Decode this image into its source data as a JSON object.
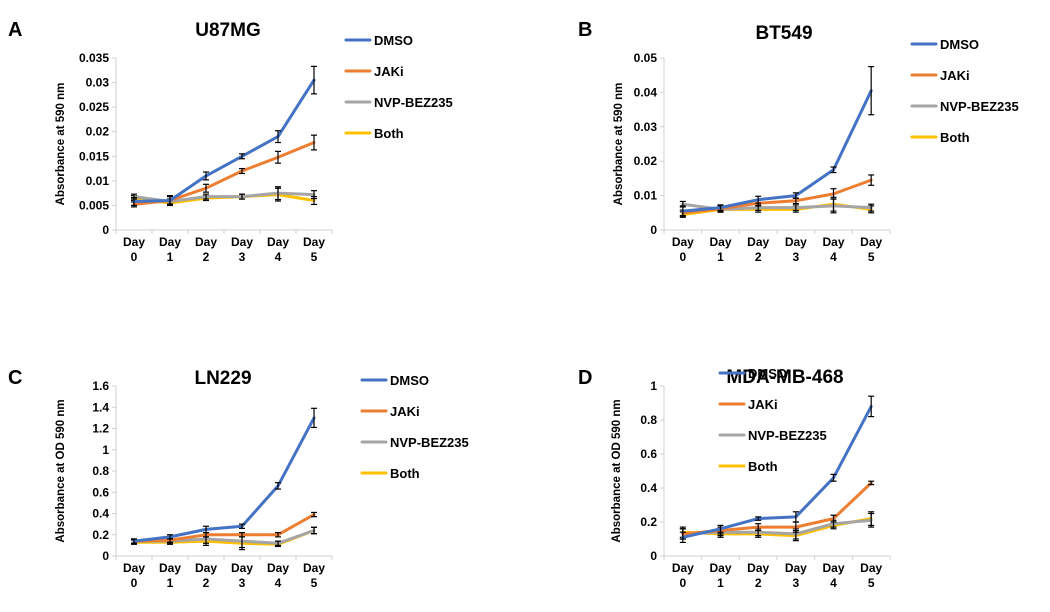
{
  "colors": {
    "DMSO": "#4472C4",
    "JAKi": "#ED7D31",
    "NVP-BEZ235": "#A5A5A5",
    "Both": "#FFC000"
  },
  "chart_data": [
    {
      "panel": "A",
      "type": "line",
      "title": "U87MG",
      "ylabel": "Absorbance at 590 nm",
      "ylim": [
        0,
        0.035
      ],
      "yticks": [
        0,
        0.005,
        0.01,
        0.015,
        0.02,
        0.025,
        0.03,
        0.035
      ],
      "ytick_labels": [
        "0",
        "0.005",
        "0.01",
        "0.015",
        "0.02",
        "0.025",
        "0.03",
        "0.035"
      ],
      "categories": [
        [
          "Day",
          "0"
        ],
        [
          "Day",
          "1"
        ],
        [
          "Day",
          "2"
        ],
        [
          "Day",
          "3"
        ],
        [
          "Day",
          "4"
        ],
        [
          "Day",
          "5"
        ]
      ],
      "series": [
        {
          "name": "DMSO",
          "values": [
            0.0058,
            0.006,
            0.011,
            0.015,
            0.019,
            0.0305
          ],
          "errors": [
            0.0008,
            0.001,
            0.0008,
            0.0005,
            0.0012,
            0.0028
          ]
        },
        {
          "name": "JAKi",
          "values": [
            0.0052,
            0.006,
            0.0085,
            0.012,
            0.0148,
            0.0178
          ],
          "errors": [
            0.0005,
            0.0008,
            0.0008,
            0.0005,
            0.0012,
            0.0015
          ]
        },
        {
          "name": "NVP-BEZ235",
          "values": [
            0.0068,
            0.0058,
            0.0068,
            0.0068,
            0.0075,
            0.0072
          ],
          "errors": [
            0.0005,
            0.0005,
            0.0005,
            0.0005,
            0.0013,
            0.0008
          ]
        },
        {
          "name": "Both",
          "values": [
            0.0065,
            0.0055,
            0.0065,
            0.0068,
            0.0072,
            0.006
          ],
          "errors": [
            0.0005,
            0.0005,
            0.0005,
            0.0005,
            0.0013,
            0.0008
          ]
        }
      ]
    },
    {
      "panel": "B",
      "type": "line",
      "title": "BT549",
      "ylabel": "Absorbance at 590 nm",
      "ylim": [
        0,
        0.05
      ],
      "yticks": [
        0,
        0.01,
        0.02,
        0.03,
        0.04,
        0.05
      ],
      "ytick_labels": [
        "0",
        "0.01",
        "0.02",
        "0.03",
        "0.04",
        "0.05"
      ],
      "categories": [
        [
          "Day",
          "0"
        ],
        [
          "Day",
          "1"
        ],
        [
          "Day",
          "2"
        ],
        [
          "Day",
          "3"
        ],
        [
          "Day",
          "4"
        ],
        [
          "Day",
          "5"
        ]
      ],
      "series": [
        {
          "name": "DMSO",
          "values": [
            0.0055,
            0.0065,
            0.0088,
            0.01,
            0.0175,
            0.0405
          ],
          "errors": [
            0.0015,
            0.0008,
            0.001,
            0.0008,
            0.0008,
            0.007
          ]
        },
        {
          "name": "JAKi",
          "values": [
            0.005,
            0.0062,
            0.0078,
            0.0085,
            0.0105,
            0.0145
          ],
          "errors": [
            0.0008,
            0.0008,
            0.0008,
            0.0008,
            0.0015,
            0.0015
          ]
        },
        {
          "name": "NVP-BEZ235",
          "values": [
            0.0075,
            0.006,
            0.0065,
            0.0065,
            0.007,
            0.0065
          ],
          "errors": [
            0.0008,
            0.0008,
            0.0008,
            0.0008,
            0.002,
            0.001
          ]
        },
        {
          "name": "Both",
          "values": [
            0.0045,
            0.006,
            0.006,
            0.006,
            0.0075,
            0.006
          ],
          "errors": [
            0.0008,
            0.0008,
            0.0008,
            0.0008,
            0.002,
            0.001
          ]
        }
      ]
    },
    {
      "panel": "C",
      "type": "line",
      "title": "LN229",
      "ylabel": "Absorbance at OD 590 nm",
      "ylim": [
        0,
        1.6
      ],
      "yticks": [
        0,
        0.2,
        0.4,
        0.6,
        0.8,
        1.0,
        1.2,
        1.4,
        1.6
      ],
      "ytick_labels": [
        "0",
        "0.2",
        "0.4",
        "0.6",
        "0.8",
        "1",
        "1.2",
        "1.4",
        "1.6"
      ],
      "categories": [
        [
          "Day",
          "0"
        ],
        [
          "Day",
          "1"
        ],
        [
          "Day",
          "2"
        ],
        [
          "Day",
          "3"
        ],
        [
          "Day",
          "4"
        ],
        [
          "Day",
          "5"
        ]
      ],
      "series": [
        {
          "name": "DMSO",
          "values": [
            0.14,
            0.18,
            0.25,
            0.28,
            0.66,
            1.3
          ],
          "errors": [
            0.02,
            0.02,
            0.03,
            0.02,
            0.03,
            0.09
          ]
        },
        {
          "name": "JAKi",
          "values": [
            0.14,
            0.15,
            0.2,
            0.2,
            0.2,
            0.39
          ],
          "errors": [
            0.02,
            0.02,
            0.02,
            0.02,
            0.02,
            0.02
          ]
        },
        {
          "name": "NVP-BEZ235",
          "values": [
            0.14,
            0.14,
            0.16,
            0.14,
            0.12,
            0.24
          ],
          "errors": [
            0.02,
            0.02,
            0.04,
            0.06,
            0.02,
            0.03
          ]
        },
        {
          "name": "Both",
          "values": [
            0.13,
            0.13,
            0.14,
            0.12,
            0.11,
            0.24
          ],
          "errors": [
            0.02,
            0.02,
            0.04,
            0.06,
            0.02,
            0.03
          ]
        }
      ]
    },
    {
      "panel": "D",
      "type": "line",
      "title": "MDA-MB-468",
      "ylabel": "Absorbance at OD 590 nm",
      "ylim": [
        0,
        1
      ],
      "yticks": [
        0,
        0.2,
        0.4,
        0.6,
        0.8,
        1
      ],
      "ytick_labels": [
        "0",
        "0.2",
        "0.4",
        "0.6",
        "0.8",
        "1"
      ],
      "categories": [
        [
          "Day",
          "0"
        ],
        [
          "Day",
          "1"
        ],
        [
          "Day",
          "2"
        ],
        [
          "Day",
          "3"
        ],
        [
          "Day",
          "4"
        ],
        [
          "Day",
          "5"
        ]
      ],
      "series": [
        {
          "name": "DMSO",
          "values": [
            0.11,
            0.16,
            0.22,
            0.23,
            0.46,
            0.88
          ],
          "errors": [
            0.03,
            0.02,
            0.01,
            0.03,
            0.02,
            0.06
          ]
        },
        {
          "name": "JAKi",
          "values": [
            0.13,
            0.15,
            0.17,
            0.17,
            0.22,
            0.43
          ],
          "errors": [
            0.03,
            0.02,
            0.02,
            0.03,
            0.02,
            0.01
          ]
        },
        {
          "name": "NVP-BEZ235",
          "values": [
            0.13,
            0.14,
            0.14,
            0.13,
            0.19,
            0.21
          ],
          "errors": [
            0.03,
            0.02,
            0.02,
            0.03,
            0.02,
            0.04
          ]
        },
        {
          "name": "Both",
          "values": [
            0.14,
            0.13,
            0.13,
            0.12,
            0.18,
            0.22
          ],
          "errors": [
            0.03,
            0.02,
            0.02,
            0.03,
            0.02,
            0.04
          ]
        }
      ]
    }
  ]
}
